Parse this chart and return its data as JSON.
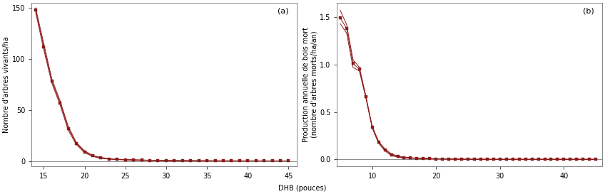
{
  "panel_a": {
    "label": "(a)",
    "ylabel": "Nombre d'arbres vivants/ha",
    "xlim": [
      13.5,
      46
    ],
    "ylim": [
      -5,
      155
    ],
    "yticks": [
      0,
      50,
      100,
      150
    ],
    "xticks": [
      15,
      20,
      25,
      30,
      35,
      40,
      45
    ],
    "x": [
      14,
      15,
      16,
      17,
      18,
      19,
      20,
      21,
      22,
      23,
      24,
      25,
      26,
      27,
      28,
      29,
      30,
      31,
      32,
      33,
      34,
      35,
      36,
      37,
      38,
      39,
      40,
      41,
      42,
      43,
      44,
      45
    ],
    "y_main": [
      148,
      112,
      78,
      57,
      32,
      17,
      9,
      5,
      3,
      2,
      1.5,
      1.2,
      1.0,
      0.8,
      0.6,
      0.5,
      0.4,
      0.3,
      0.25,
      0.2,
      0.18,
      0.15,
      0.12,
      0.1,
      0.09,
      0.08,
      0.07,
      0.06,
      0.06,
      0.05,
      0.05,
      0.04
    ],
    "y_upper": [
      150,
      115,
      80,
      59,
      34,
      18,
      10,
      5.5,
      3.5,
      2.2,
      1.7,
      1.4,
      1.2,
      1.0,
      0.7,
      0.55,
      0.45,
      0.35,
      0.28,
      0.22,
      0.2,
      0.17,
      0.14,
      0.11,
      0.1,
      0.09,
      0.08,
      0.07,
      0.07,
      0.06,
      0.06,
      0.05
    ],
    "y_lower": [
      146,
      109,
      76,
      55,
      30,
      16,
      8,
      4.5,
      2.5,
      1.8,
      1.3,
      1.0,
      0.8,
      0.6,
      0.5,
      0.45,
      0.35,
      0.25,
      0.22,
      0.18,
      0.16,
      0.13,
      0.1,
      0.09,
      0.08,
      0.07,
      0.06,
      0.05,
      0.05,
      0.04,
      0.04,
      0.03
    ]
  },
  "panel_b": {
    "label": "(b)",
    "ylabel": "Production annuelle de bois mort\n(nombre d'arbres morts/ha/an)",
    "xlim": [
      4.5,
      46
    ],
    "ylim": [
      -0.07,
      1.65
    ],
    "yticks": [
      0.0,
      0.5,
      1.0,
      1.5
    ],
    "xticks": [
      10,
      20,
      30,
      40
    ],
    "x": [
      5,
      6,
      7,
      8,
      9,
      10,
      11,
      12,
      13,
      14,
      15,
      16,
      17,
      18,
      19,
      20,
      21,
      22,
      23,
      24,
      25,
      26,
      27,
      28,
      29,
      30,
      31,
      32,
      33,
      34,
      35,
      36,
      37,
      38,
      39,
      40,
      41,
      42,
      43,
      44,
      45
    ],
    "y_main": [
      1.49,
      1.38,
      1.01,
      0.95,
      0.66,
      0.34,
      0.18,
      0.1,
      0.05,
      0.03,
      0.02,
      0.015,
      0.012,
      0.01,
      0.008,
      0.006,
      0.005,
      0.004,
      0.003,
      0.003,
      0.002,
      0.002,
      0.001,
      0.001,
      0.001,
      0.001,
      0.001,
      0.001,
      0.001,
      0.001,
      0.001,
      0.001,
      0.001,
      0.001,
      0.001,
      0.001,
      0.001,
      0.001,
      0.001,
      0.001,
      0.001
    ],
    "y_upper": [
      1.57,
      1.42,
      1.05,
      0.97,
      0.67,
      0.35,
      0.19,
      0.11,
      0.06,
      0.035,
      0.025,
      0.018,
      0.014,
      0.012,
      0.009,
      0.007,
      0.006,
      0.005,
      0.004,
      0.003,
      0.003,
      0.002,
      0.002,
      0.001,
      0.001,
      0.001,
      0.001,
      0.001,
      0.001,
      0.001,
      0.001,
      0.001,
      0.001,
      0.001,
      0.001,
      0.001,
      0.001,
      0.001,
      0.001,
      0.001,
      0.001
    ],
    "y_lower": [
      1.43,
      1.33,
      0.97,
      0.93,
      0.65,
      0.33,
      0.17,
      0.09,
      0.04,
      0.025,
      0.015,
      0.012,
      0.01,
      0.008,
      0.007,
      0.005,
      0.004,
      0.003,
      0.002,
      0.002,
      0.001,
      0.001,
      0.001,
      0.001,
      0.001,
      0.001,
      0.001,
      0.001,
      0.001,
      0.001,
      0.001,
      0.001,
      0.001,
      0.001,
      0.001,
      0.001,
      0.001,
      0.001,
      0.001,
      0.001,
      0.001
    ]
  },
  "xlabel": "DHB (pouces)",
  "bg_color": "#ffffff",
  "line_color": "#8B1A1A",
  "marker": "s",
  "markersize": 2.5,
  "linewidth": 0.7,
  "hline_color": "#777777",
  "hline_lw": 0.6,
  "fontsize_ylabel": 7,
  "fontsize_tick": 7,
  "fontsize_panel": 8,
  "fontsize_xlabel": 7
}
